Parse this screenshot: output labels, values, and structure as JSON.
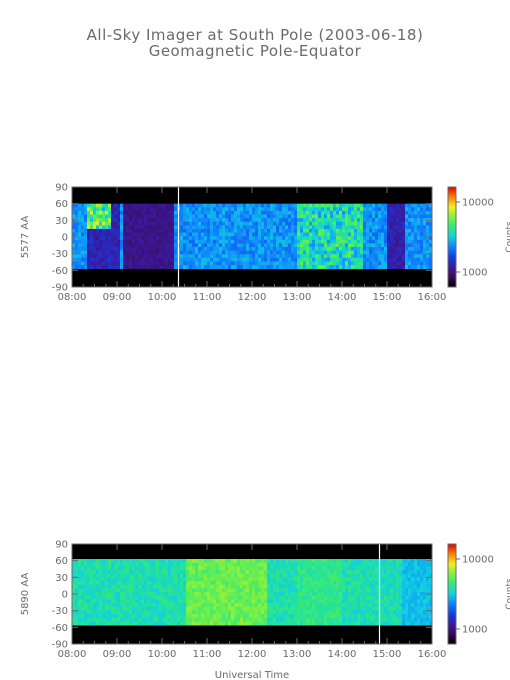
{
  "title_line1": "All-Sky Imager at South Pole (2003-06-18)",
  "title_line2": "Geomagnetic Pole-Equator",
  "colors": {
    "text": "#6a6a6a",
    "background": "#ffffff",
    "colormap": [
      "#000000",
      "#3a0a55",
      "#3a1aa0",
      "#1040e0",
      "#1080ff",
      "#10d0e0",
      "#30e880",
      "#80f040",
      "#f0f020",
      "#ff8000",
      "#e00000"
    ]
  },
  "chart_data": [
    {
      "type": "heatmap",
      "ylabel": "5577 AA",
      "xlabel": "",
      "x_ticks": [
        "08:00",
        "09:00",
        "10:00",
        "11:00",
        "12:00",
        "13:00",
        "14:00",
        "15:00",
        "16:00"
      ],
      "y_ticks": [
        90,
        60,
        30,
        0,
        -30,
        -60,
        -90
      ],
      "ylim": [
        -90,
        90
      ],
      "xlim_hours": [
        8,
        16
      ],
      "valid_lat_range": [
        -57,
        60
      ],
      "gap_line_time": "10:22",
      "colorbar_label": "Counts",
      "colorbar_ticks": [
        "10000",
        "1000"
      ],
      "dominant_color": "blue",
      "hotspots": [
        "08:30",
        "09:00",
        "13:40",
        "14:00"
      ]
    },
    {
      "type": "heatmap",
      "ylabel": "5890 AA",
      "xlabel": "Universal Time",
      "x_ticks": [
        "08:00",
        "09:00",
        "10:00",
        "11:00",
        "12:00",
        "13:00",
        "14:00",
        "15:00",
        "16:00"
      ],
      "y_ticks": [
        90,
        60,
        30,
        0,
        -30,
        -60,
        -90
      ],
      "ylim": [
        -90,
        90
      ],
      "xlim_hours": [
        8,
        16
      ],
      "valid_lat_range": [
        -56,
        63
      ],
      "gap_line_time": "14:50",
      "colorbar_label": "Counts",
      "colorbar_ticks": [
        "10000",
        "1000"
      ],
      "dominant_color": "cyan-green",
      "bright_band": [
        "10:30",
        "12:20"
      ]
    }
  ]
}
